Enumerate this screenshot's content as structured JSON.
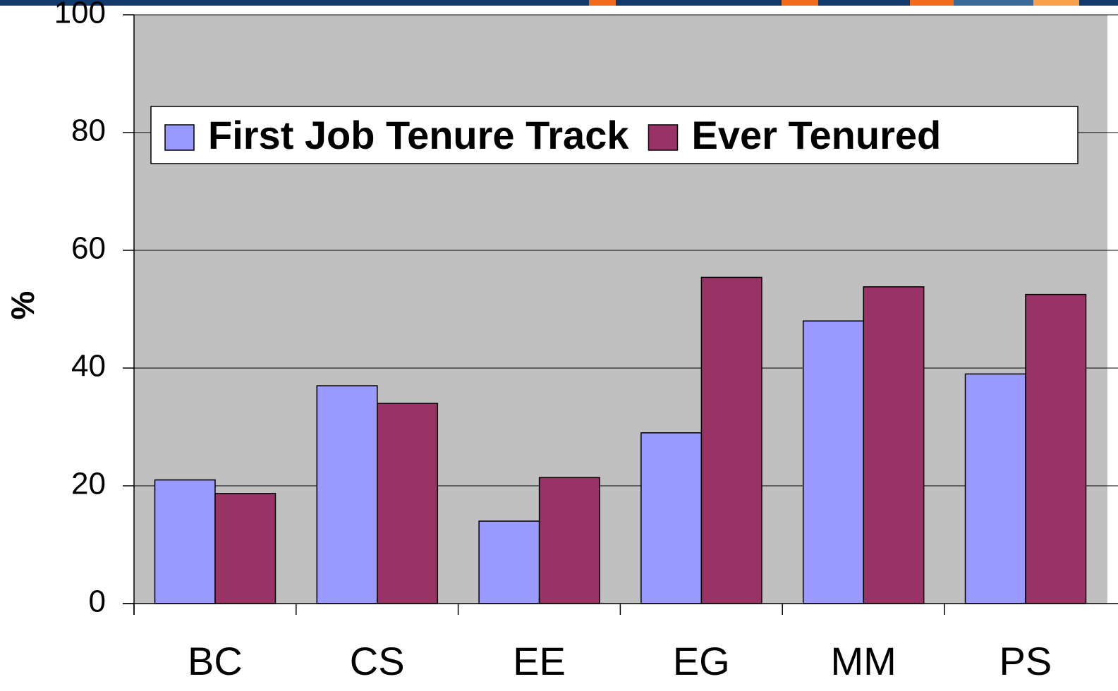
{
  "chart_data": {
    "type": "bar",
    "y_label": "%",
    "categories": [
      "BC",
      "CS",
      "EE",
      "EG",
      "MM",
      "PS"
    ],
    "series": [
      {
        "name": "First Job Tenure Track",
        "color": "#9999ff",
        "values": [
          21,
          37,
          14,
          29,
          48,
          39
        ]
      },
      {
        "name": "Ever Tenured",
        "color": "#993366",
        "values": [
          18.7,
          34,
          21.4,
          55.4,
          53.8,
          52.5
        ]
      }
    ],
    "ylim": [
      0,
      100
    ],
    "yticks": [
      0,
      20,
      40,
      60,
      80,
      100
    ],
    "grid": true,
    "legend": "top"
  }
}
